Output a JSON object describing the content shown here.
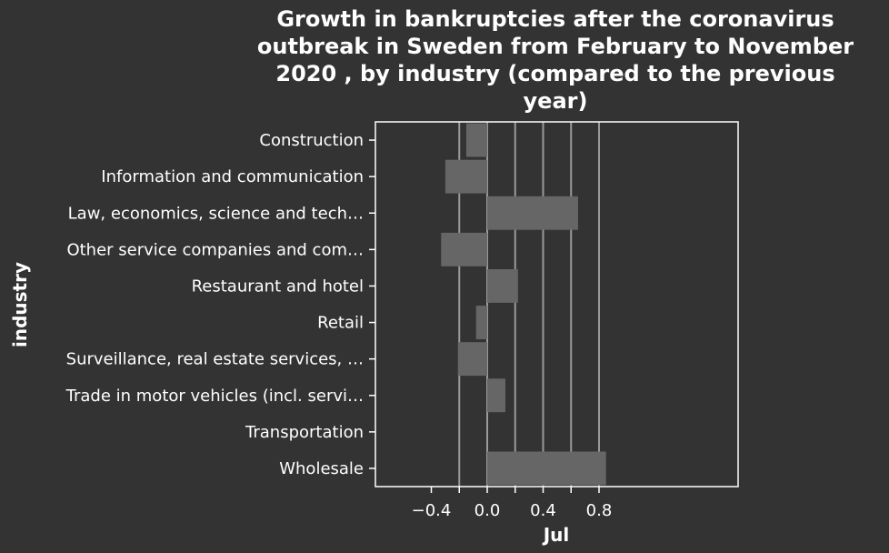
{
  "chart_data": {
    "type": "bar",
    "orientation": "horizontal",
    "title_lines": [
      "Growth in bankruptcies after the coronavirus",
      "outbreak in Sweden from February to November",
      "2020 , by industry (compared to the previous",
      "year)"
    ],
    "xlabel": "Jul",
    "ylabel": "industry",
    "categories": [
      "Construction",
      "Information and communication",
      "Law, economics, science and tech…",
      "Other service companies and com…",
      "Restaurant and hotel",
      "Retail",
      "Surveillance, real estate services, …",
      "Trade in motor vehicles (incl. servi…",
      "Transportation",
      "Wholesale"
    ],
    "values": [
      -0.15,
      -0.3,
      0.65,
      -0.33,
      0.22,
      -0.08,
      -0.21,
      0.13,
      0,
      0.85
    ],
    "xlim": [
      -0.4,
      0.9
    ],
    "xticks": [
      -0.4,
      0.0,
      0.4,
      0.8
    ],
    "xtick_labels": [
      "−0.4",
      "0.0",
      "0.4",
      "0.8"
    ],
    "grid": "vertical",
    "colors": {
      "background": "#333333",
      "bar": "#666666",
      "grid": "#9a9a9a",
      "text": "#ffffff"
    }
  }
}
